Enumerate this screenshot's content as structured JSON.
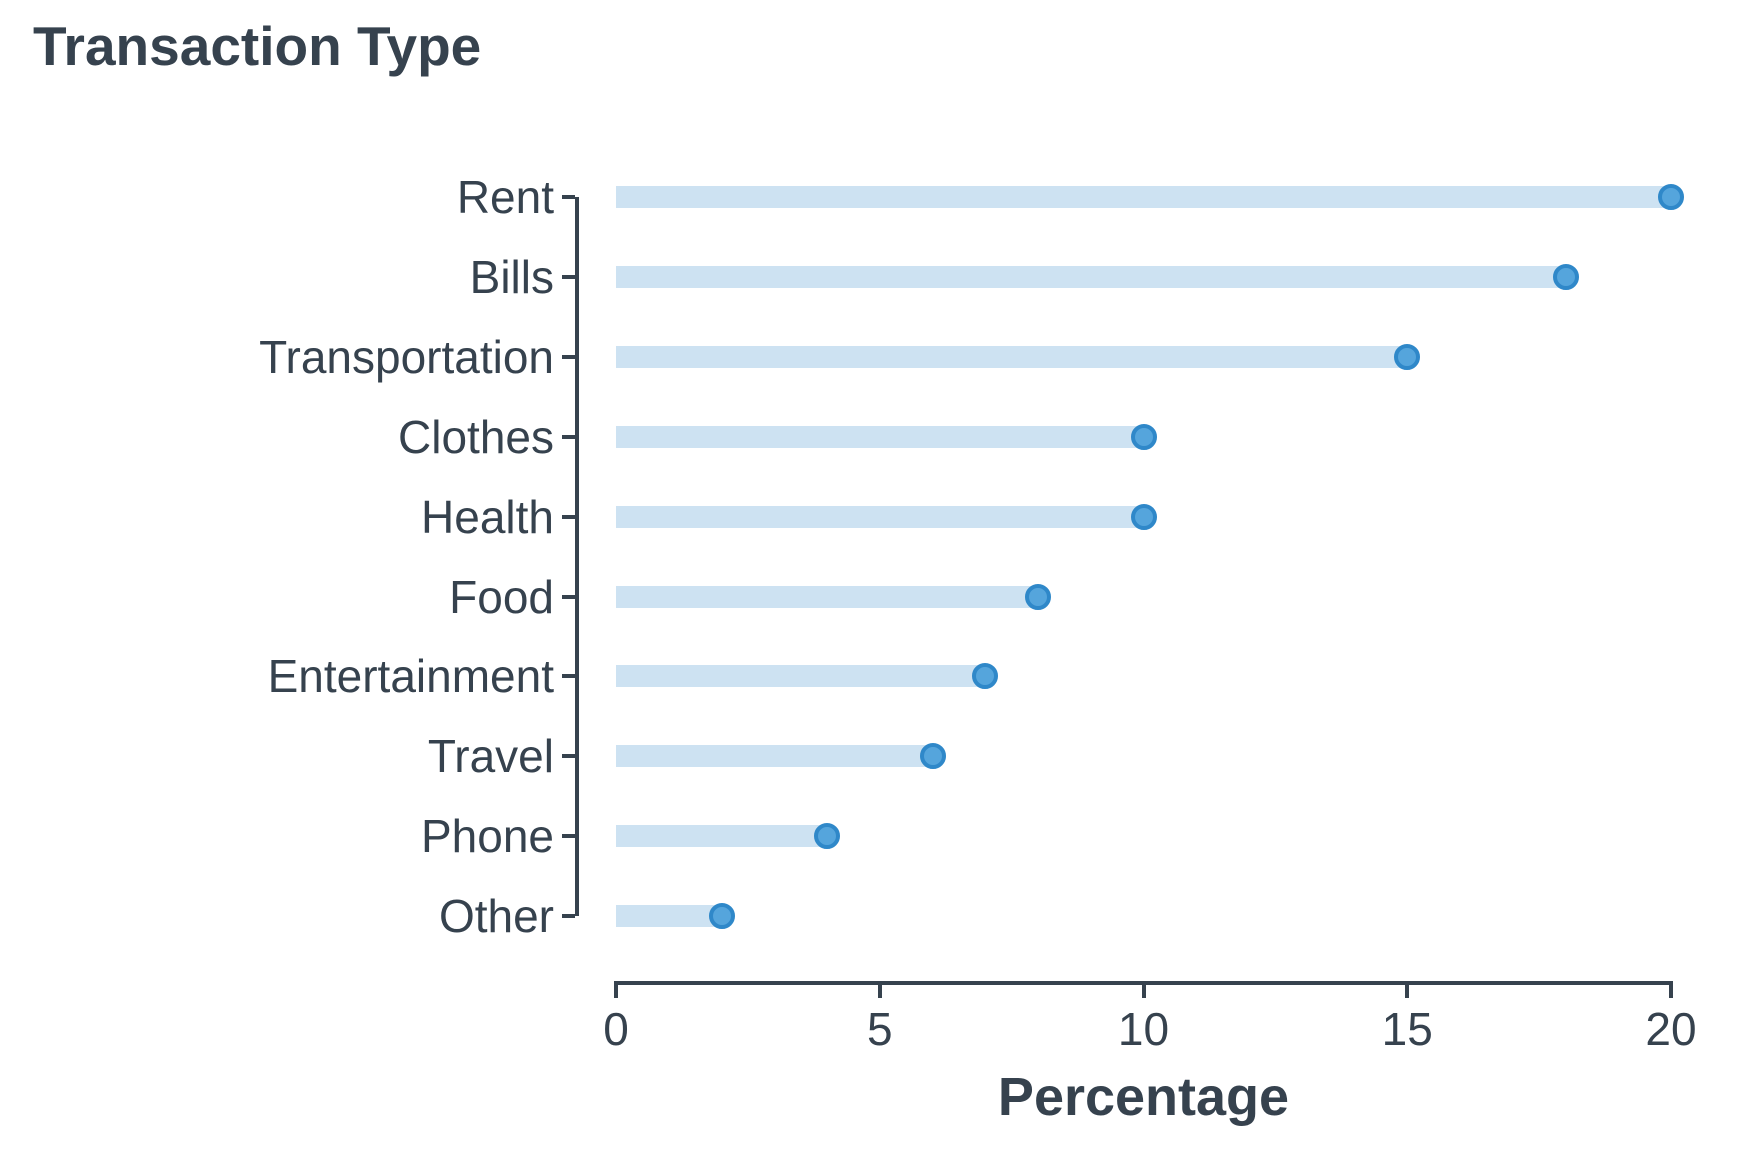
{
  "title": "Transaction Type",
  "chart_data": {
    "type": "bar",
    "variant": "lollipop",
    "orientation": "horizontal",
    "title": "Transaction Type",
    "categories": [
      "Rent",
      "Bills",
      "Transportation",
      "Clothes",
      "Health",
      "Food",
      "Entertainment",
      "Travel",
      "Phone",
      "Other"
    ],
    "values": [
      20,
      18,
      15,
      10,
      10,
      8,
      7,
      6,
      4,
      2
    ],
    "xlabel": "Percentage",
    "ylabel": "",
    "xlim": [
      0,
      20
    ],
    "xticks": [
      0,
      5,
      10,
      15,
      20
    ],
    "grid": false,
    "legend": "none",
    "colors": {
      "bar": "#cde2f2",
      "dot_fill": "#55a5dc",
      "dot_edge": "#2f88c9",
      "axis_text": "#36424e",
      "background": "#ffffff"
    }
  }
}
